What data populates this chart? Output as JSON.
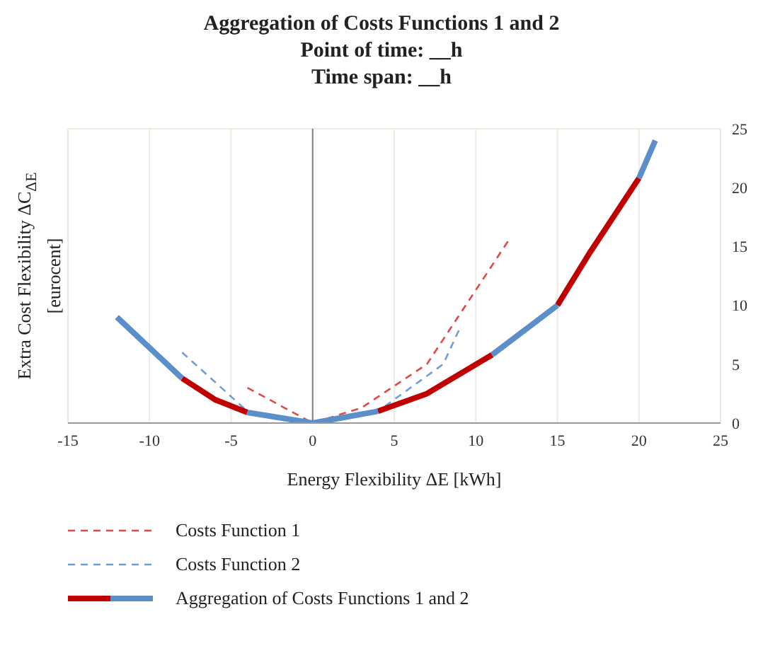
{
  "chart_data": {
    "type": "line",
    "title": "Aggregation of Costs Functions 1 and 2",
    "subtitle": "Point of time: __h\nTime span: __h",
    "xlabel": "Energy Flexibility ΔE [kWh]",
    "ylabel": "Extra Cost Flexibility ΔC$_{ΔE}$ [eurocent]",
    "xlim": [
      -15,
      25
    ],
    "xticks": [
      -15,
      -10,
      -5,
      0,
      5,
      10,
      15,
      20,
      25
    ],
    "ylim": [
      0,
      25
    ],
    "yticks": [
      0,
      5,
      10,
      15,
      20,
      25
    ],
    "grid": true,
    "legend": "bottom",
    "ref_lines": [
      {
        "axis": "x",
        "value": 0,
        "color": "#7f7f7f"
      }
    ],
    "series": [
      {
        "name": "Costs Function 1",
        "color": "#e0484a",
        "line_style": "dashed",
        "x": [
          -4,
          0,
          3,
          7,
          12
        ],
        "values": [
          3,
          0,
          1.3,
          5,
          15.5
        ]
      },
      {
        "name": "Costs Function 2",
        "color": "#6f9fd8",
        "line_style": "dashed",
        "x": [
          -8,
          -4,
          0,
          4,
          8,
          9
        ],
        "values": [
          6,
          1,
          0,
          1,
          5,
          8
        ]
      },
      {
        "name": "Aggregation of Costs Functions 1 and 2",
        "color": "#c00000",
        "line_style": "solid",
        "x": [
          -8,
          -6,
          -4,
          0,
          4,
          7,
          11,
          13,
          15,
          17,
          20
        ],
        "values": [
          3.8,
          2,
          0.9,
          null,
          1,
          2.5,
          5.8,
          null,
          10,
          14.5,
          20.8
        ]
      },
      {
        "color": "#5b8fc9",
        "line_style": "solid",
        "x": [
          -12,
          -8,
          -6,
          -4,
          0,
          4,
          7,
          11,
          15,
          17,
          20,
          21
        ],
        "values": [
          9,
          3.8,
          null,
          0.9,
          0,
          1,
          null,
          5.8,
          10,
          null,
          20.8,
          24
        ]
      }
    ]
  }
}
